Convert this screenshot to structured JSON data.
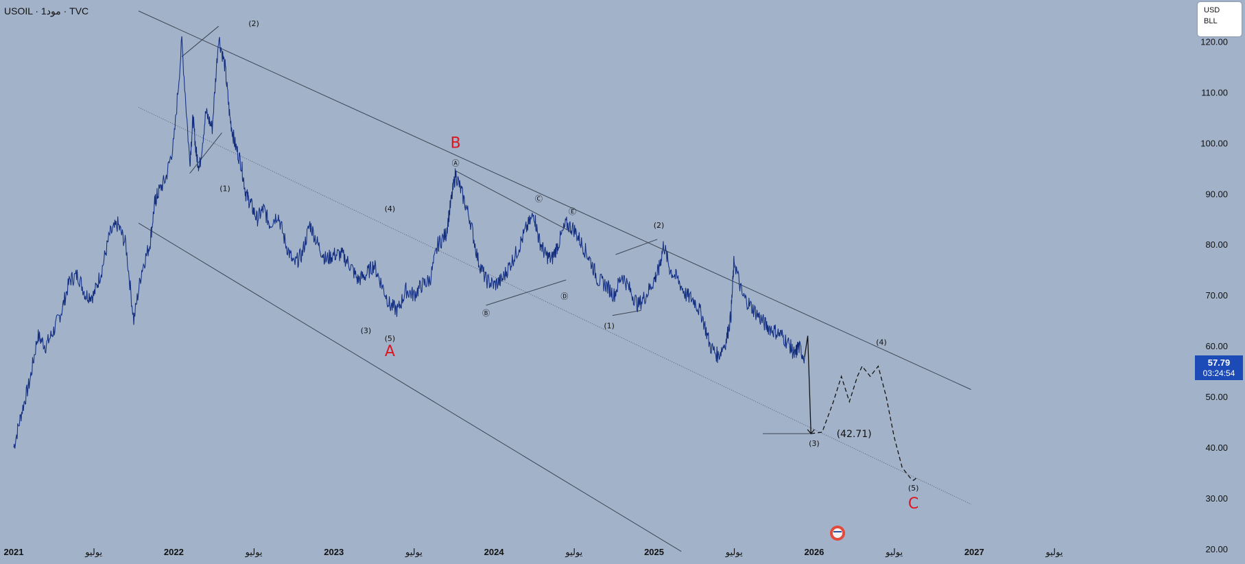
{
  "header": {
    "title": "USOIL · 1مود · TVC"
  },
  "currency_box": {
    "line1": "USD",
    "line2": "BLL"
  },
  "last_price": {
    "price": "57.79",
    "countdown": "03:24:54"
  },
  "colors": {
    "background": "#a2b2c9",
    "price_line": "#1c3fa8",
    "accent_label": "#e0141e",
    "price_tag": "#1c4bb8"
  },
  "chart_data": {
    "type": "line",
    "title": "",
    "xlabel": "",
    "ylabel": "",
    "ylim": [
      20,
      126
    ],
    "xlim": [
      2021.0,
      2027.77
    ],
    "y_tick_labels": [
      "120.00",
      "110.00",
      "100.00",
      "90.00",
      "80.00",
      "70.00",
      "60.00",
      "50.00",
      "40.00",
      "30.00",
      "20.00"
    ],
    "y_tick_values": [
      120,
      110,
      100,
      90,
      80,
      70,
      60,
      50,
      40,
      30,
      20
    ],
    "x_tick_labels": [
      {
        "t": 2021.0,
        "label": "2021"
      },
      {
        "t": 2021.5,
        "label": "يوليو"
      },
      {
        "t": 2022.0,
        "label": "2022"
      },
      {
        "t": 2022.5,
        "label": "يوليو"
      },
      {
        "t": 2023.0,
        "label": "2023"
      },
      {
        "t": 2023.5,
        "label": "يوليو"
      },
      {
        "t": 2024.0,
        "label": "2024"
      },
      {
        "t": 2024.5,
        "label": "يوليو"
      },
      {
        "t": 2025.0,
        "label": "2025"
      },
      {
        "t": 2025.5,
        "label": "يوليو"
      },
      {
        "t": 2026.0,
        "label": "2026"
      },
      {
        "t": 2026.5,
        "label": "يوليو"
      },
      {
        "t": 2027.0,
        "label": "2027"
      },
      {
        "t": 2027.5,
        "label": "يوليو"
      }
    ],
    "grid": false,
    "series": [
      {
        "x": [
          2021.0,
          2021.05,
          2021.1,
          2021.15,
          2021.2,
          2021.25,
          2021.3,
          2021.35,
          2021.4,
          2021.45,
          2021.5,
          2021.55,
          2021.6,
          2021.65,
          2021.7,
          2021.75,
          2021.8,
          2021.85,
          2021.88,
          2021.9,
          2021.95,
          2022.0,
          2022.05,
          2022.1,
          2022.12,
          2022.14,
          2022.16,
          2022.2,
          2022.24,
          2022.28,
          2022.32,
          2022.35,
          2022.38,
          2022.42,
          2022.45,
          2022.48,
          2022.52,
          2022.56,
          2022.6,
          2022.65,
          2022.7,
          2022.75,
          2022.8,
          2022.85,
          2022.9,
          2022.95,
          2023.0,
          2023.05,
          2023.1,
          2023.15,
          2023.2,
          2023.25,
          2023.3,
          2023.35,
          2023.4,
          2023.45,
          2023.5,
          2023.55,
          2023.6,
          2023.65,
          2023.7,
          2023.73,
          2023.76,
          2023.8,
          2023.85,
          2023.9,
          2023.95,
          2024.0,
          2024.05,
          2024.1,
          2024.15,
          2024.2,
          2024.25,
          2024.28,
          2024.32,
          2024.36,
          2024.4,
          2024.45,
          2024.5,
          2024.55,
          2024.6,
          2024.65,
          2024.7,
          2024.75,
          2024.8,
          2024.85,
          2024.9,
          2024.95,
          2025.0,
          2025.03,
          2025.06,
          2025.1,
          2025.15,
          2025.2,
          2025.25,
          2025.3,
          2025.35,
          2025.4,
          2025.45,
          2025.48,
          2025.5,
          2025.55,
          2025.6,
          2025.65,
          2025.7,
          2025.75,
          2025.8,
          2025.85,
          2025.88,
          2025.9,
          2025.94
        ],
        "y": [
          40,
          47,
          53,
          62,
          60,
          63,
          67,
          73,
          74,
          70,
          70,
          75,
          82,
          84,
          80,
          65,
          75,
          80,
          88,
          90,
          93,
          100,
          120,
          96,
          105,
          98,
          95,
          106,
          103,
          121,
          115,
          105,
          100,
          96,
          90,
          88,
          85,
          87,
          84,
          86,
          80,
          76,
          78,
          84,
          80,
          77,
          78,
          78,
          76,
          73,
          74,
          76,
          72,
          68,
          67,
          71,
          70,
          72,
          73,
          80,
          82,
          88,
          94,
          90,
          85,
          77,
          73,
          72,
          73,
          76,
          79,
          83,
          86,
          81,
          78,
          77,
          80,
          84,
          83,
          80,
          77,
          73,
          72,
          70,
          74,
          71,
          68,
          70,
          73,
          75,
          80,
          75,
          73,
          70,
          69,
          66,
          60,
          58,
          61,
          66,
          77,
          70,
          68,
          66,
          64,
          63,
          62,
          60,
          58,
          60,
          57.79
        ]
      }
    ],
    "projection": {
      "x": [
        2025.94,
        2025.96,
        2025.98,
        2026.05,
        2026.12,
        2026.17,
        2026.22,
        2026.27,
        2026.3,
        2026.35,
        2026.4,
        2026.45,
        2026.5,
        2026.55,
        2026.6,
        2026.62,
        2026.64
      ],
      "y": [
        57.79,
        62,
        42.71,
        43,
        49,
        54,
        49,
        54,
        56,
        54,
        56,
        50,
        42,
        36,
        34,
        33.5,
        34
      ]
    },
    "target_label": "(42.71)",
    "annotations": [
      {
        "text": "(2)",
        "x": 2022.5,
        "y": 123
      },
      {
        "text": "(1)",
        "x": 2022.32,
        "y": 90.5
      },
      {
        "text": "(4)",
        "x": 2023.35,
        "y": 86.5
      },
      {
        "text": "(3)",
        "x": 2023.2,
        "y": 62.5
      },
      {
        "text": "(5)",
        "x": 2023.35,
        "y": 61
      },
      {
        "text": "A",
        "x": 2023.35,
        "y": 58,
        "red": true,
        "large": true
      },
      {
        "text": "B",
        "x": 2023.76,
        "y": 99,
        "red": true,
        "large": true
      },
      {
        "text": "Ⓐ",
        "x": 2023.76,
        "y": 95.5
      },
      {
        "text": "Ⓑ",
        "x": 2023.95,
        "y": 66
      },
      {
        "text": "Ⓒ",
        "x": 2024.28,
        "y": 88.5
      },
      {
        "text": "Ⓓ",
        "x": 2024.44,
        "y": 69.3
      },
      {
        "text": "Ⓔ",
        "x": 2024.49,
        "y": 86
      },
      {
        "text": "(1)",
        "x": 2024.72,
        "y": 63.5
      },
      {
        "text": "(2)",
        "x": 2025.03,
        "y": 83.3
      },
      {
        "text": "(3)",
        "x": 2026.0,
        "y": 40.3
      },
      {
        "text": "(4)",
        "x": 2026.42,
        "y": 60.2
      },
      {
        "text": "(5)",
        "x": 2026.62,
        "y": 31.5
      },
      {
        "text": "C",
        "x": 2026.62,
        "y": 28,
        "red": true,
        "large": true
      }
    ],
    "lines": [
      {
        "x1": 2021.78,
        "y1": 126,
        "x2": 2026.98,
        "y2": 51.4,
        "style": "solid"
      },
      {
        "x1": 2021.78,
        "y1": 84.2,
        "x2": 2025.17,
        "y2": 19.5,
        "style": "solid"
      },
      {
        "x1": 2021.78,
        "y1": 107,
        "x2": 2026.98,
        "y2": 28.8,
        "style": "dotted"
      },
      {
        "x1": 2022.05,
        "y1": 117,
        "x2": 2022.28,
        "y2": 123,
        "style": "solid"
      },
      {
        "x1": 2022.1,
        "y1": 94,
        "x2": 2022.3,
        "y2": 102,
        "style": "solid"
      },
      {
        "x1": 2023.76,
        "y1": 94.5,
        "x2": 2024.48,
        "y2": 82.5,
        "style": "solid"
      },
      {
        "x1": 2023.95,
        "y1": 68,
        "x2": 2024.45,
        "y2": 73,
        "style": "solid"
      },
      {
        "x1": 2024.74,
        "y1": 66,
        "x2": 2024.92,
        "y2": 67,
        "style": "solid"
      },
      {
        "x1": 2024.76,
        "y1": 78,
        "x2": 2025.02,
        "y2": 81,
        "style": "solid"
      },
      {
        "x1": 2025.68,
        "y1": 42.71,
        "x2": 2025.98,
        "y2": 42.71,
        "style": "solid"
      }
    ]
  }
}
